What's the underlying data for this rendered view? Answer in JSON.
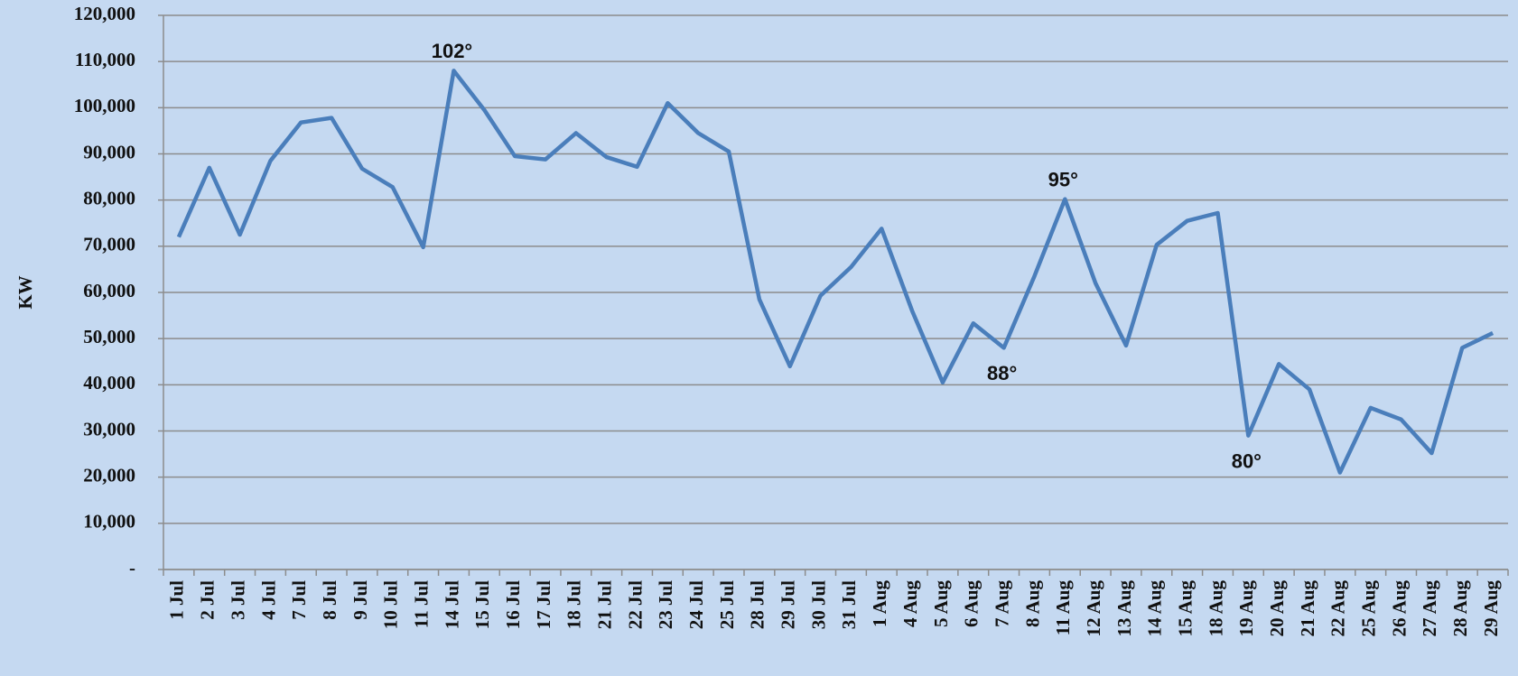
{
  "chart_data": {
    "type": "line",
    "y_label": "KW",
    "categories": [
      "1 Jul",
      "2 Jul",
      "3 Jul",
      "4 Jul",
      "7 Jul",
      "8 Jul",
      "9 Jul",
      "10 Jul",
      "11 Jul",
      "14 Jul",
      "15 Jul",
      "16 Jul",
      "17 Jul",
      "18 Jul",
      "21 Jul",
      "22 Jul",
      "23 Jul",
      "24 Jul",
      "25 Jul",
      "28 Jul",
      "29 Jul",
      "30 Jul",
      "31 Jul",
      "1 Aug",
      "4 Aug",
      "5 Aug",
      "6 Aug",
      "7 Aug",
      "8 Aug",
      "11 Aug",
      "12 Aug",
      "13 Aug",
      "14 Aug",
      "15 Aug",
      "18 Aug",
      "19 Aug",
      "20 Aug",
      "21 Aug",
      "22 Aug",
      "25 Aug",
      "26 Aug",
      "27 Aug",
      "28 Aug",
      "29 Aug"
    ],
    "series": [
      {
        "name": "KW",
        "color": "#4a7ebb",
        "values": [
          72000,
          87000,
          72500,
          88500,
          96800,
          97800,
          86800,
          82800,
          69800,
          108000,
          99500,
          89500,
          88800,
          94500,
          89300,
          87200,
          101000,
          94500,
          90500,
          58500,
          44000,
          59300,
          65500,
          73800,
          56000,
          40500,
          53300,
          48000,
          63500,
          80200,
          62000,
          48500,
          70300,
          75500,
          77200,
          29000,
          44500,
          39000,
          21000,
          35000,
          32500,
          25200,
          48000,
          51200
        ]
      }
    ],
    "ylim": [
      0,
      120000
    ],
    "yticks": [
      {
        "value": 0,
        "label": "-"
      },
      {
        "value": 10000,
        "label": "10,000"
      },
      {
        "value": 20000,
        "label": "20,000"
      },
      {
        "value": 30000,
        "label": "30,000"
      },
      {
        "value": 40000,
        "label": "40,000"
      },
      {
        "value": 50000,
        "label": "50,000"
      },
      {
        "value": 60000,
        "label": "60,000"
      },
      {
        "value": 70000,
        "label": "70,000"
      },
      {
        "value": 80000,
        "label": "80,000"
      },
      {
        "value": 90000,
        "label": "90,000"
      },
      {
        "value": 100000,
        "label": "100,000"
      },
      {
        "value": 110000,
        "label": "110,000"
      },
      {
        "value": 120000,
        "label": "120,000"
      }
    ],
    "grid": true,
    "annotations": [
      {
        "text": "102°",
        "x": "14 Jul"
      },
      {
        "text": "88°",
        "x": "7 Aug"
      },
      {
        "text": "95°",
        "x": "11 Aug"
      },
      {
        "text": "80°",
        "x": "19 Aug"
      }
    ]
  }
}
